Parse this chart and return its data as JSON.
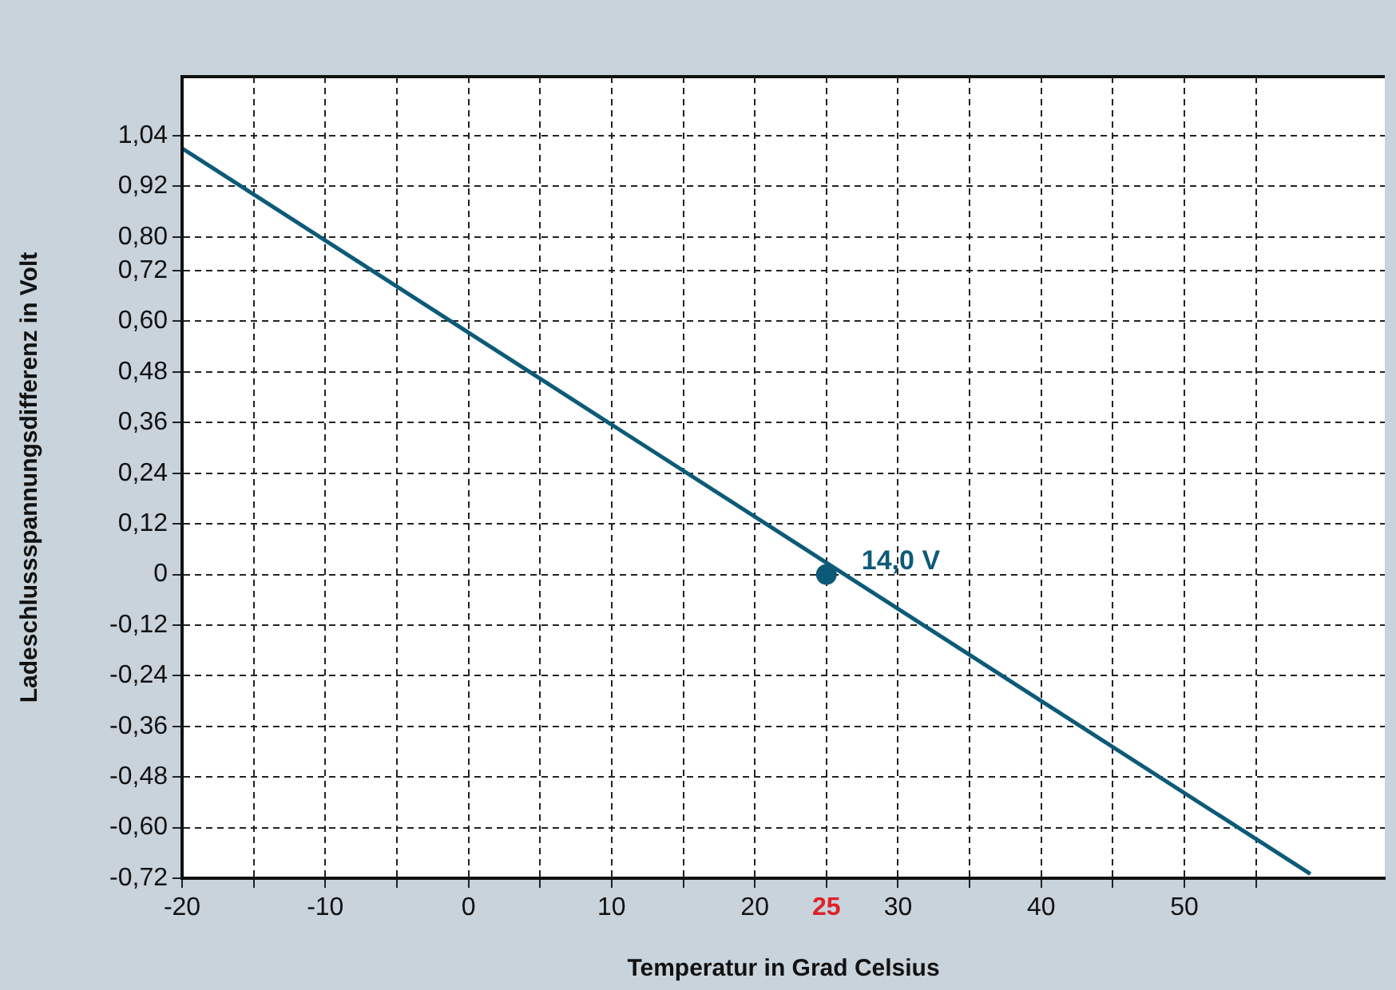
{
  "chart_data": {
    "type": "line",
    "xlabel": "Temperatur in Grad Celsius",
    "ylabel": "Ladeschlussspannungsdifferenz in Volt",
    "xlim": [
      -20,
      64
    ],
    "ylim": [
      -0.72,
      1.18
    ],
    "xticks": [
      -20,
      {
        "value": -15,
        "label": null
      },
      -10,
      {
        "value": -5,
        "label": null
      },
      0,
      {
        "value": 5,
        "label": null
      },
      10,
      {
        "value": 15,
        "label": null
      },
      20,
      {
        "value": 25,
        "label": "25"
      },
      30,
      {
        "value": 35,
        "label": null
      },
      40,
      {
        "value": 45,
        "label": null
      },
      50,
      {
        "value": 55,
        "label": null
      }
    ],
    "yticks": [
      {
        "value": 1.04,
        "label": "1,04"
      },
      {
        "value": 0.92,
        "label": "0,92"
      },
      {
        "value": 0.8,
        "label": "0,80"
      },
      {
        "value": 0.72,
        "label": "0,72"
      },
      {
        "value": 0.6,
        "label": "0,60"
      },
      {
        "value": 0.48,
        "label": "0,48"
      },
      {
        "value": 0.36,
        "label": "0,36"
      },
      {
        "value": 0.24,
        "label": "0,24"
      },
      {
        "value": 0.12,
        "label": "0,12"
      },
      {
        "value": 0,
        "label": "0"
      },
      {
        "value": -0.12,
        "label": "-0,12"
      },
      {
        "value": -0.24,
        "label": "-0,24"
      },
      {
        "value": -0.36,
        "label": "-0,36"
      },
      {
        "value": -0.48,
        "label": "-0,48"
      },
      {
        "value": -0.6,
        "label": "-0,60"
      },
      {
        "value": -0.72,
        "label": "-0,72"
      }
    ],
    "grid": true,
    "line_style": "solid",
    "marker": "none",
    "series": [
      {
        "color": "#0d5a78",
        "x": [
          -20,
          58.8
        ],
        "values": [
          1.01,
          -0.71
        ]
      },
      {
        "type": "scatter",
        "color": "#0d5a78",
        "x": [
          25
        ],
        "values": [
          0
        ],
        "marker": "circle"
      }
    ],
    "annotations": [
      {
        "text": "14,0 V",
        "x": 25,
        "y": 0
      }
    ]
  }
}
